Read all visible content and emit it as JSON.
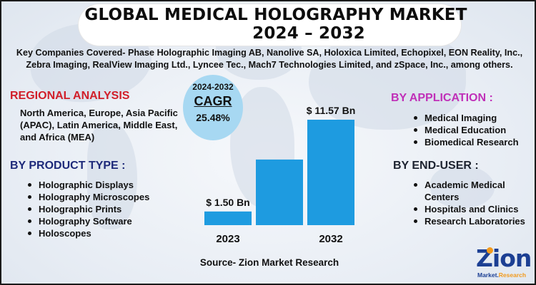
{
  "title": {
    "line1": "GLOBAL MEDICAL HOLOGRAPHY MARKET",
    "line2": "2024 – 2032"
  },
  "companies_text": "Key Companies Covered- Phase Holographic Imaging AB, Nanolive SA, Holoxica Limited, Echopixel, EON Reality, Inc., Zebra Imaging, RealView Imaging Ltd., Lyncee Tec., Mach7 Technologies Limited, and zSpace, Inc., among others.",
  "regional": {
    "title": "REGIONAL ANALYSIS",
    "text": "North America, Europe, Asia Pacific (APAC), Latin America, Middle East, and Africa (MEA)"
  },
  "product_type": {
    "title": "BY PRODUCT TYPE :",
    "items": [
      "Holographic Displays",
      "Holography Microscopes",
      "Holographic Prints",
      "Holography Software",
      "Holoscopes"
    ]
  },
  "application": {
    "title": "BY APPLICATION :",
    "items": [
      "Medical Imaging",
      "Medical Education",
      "Biomedical Research"
    ]
  },
  "end_user": {
    "title": "BY END-USER :",
    "items": [
      "Academic Medical Centers",
      "Hospitals and Clinics",
      "Research Laboratories"
    ]
  },
  "cagr": {
    "years": "2024-2032",
    "label": "CAGR",
    "value": "25.48%"
  },
  "chart_data": {
    "type": "bar",
    "categories": [
      "2023",
      "",
      "2032"
    ],
    "values": [
      1.5,
      7.2,
      11.57
    ],
    "data_labels": [
      "$ 1.50  Bn",
      "",
      "$ 11.57 Bn"
    ],
    "color": "#1e9be0"
  },
  "source": "Source- Zion Market Research",
  "logo": {
    "name": "Zion",
    "sub1": "Market.",
    "sub2": "Research"
  }
}
